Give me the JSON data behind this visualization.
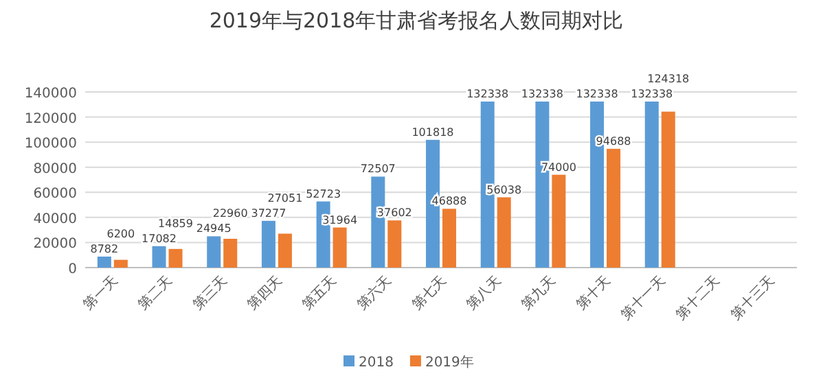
{
  "chart_data": {
    "type": "bar",
    "title": "2019年与2018年甘肃省考报名人数同期对比",
    "categories": [
      "第一天",
      "第二天",
      "第三天",
      "第四天",
      "第五天",
      "第六天",
      "第七天",
      "第八天",
      "第九天",
      "第十天",
      "第十一天",
      "第十二天",
      "第十三天"
    ],
    "series": [
      {
        "name": "2018",
        "color": "#5b9bd5",
        "values": [
          8782,
          17082,
          24945,
          37277,
          52723,
          72507,
          101818,
          132338,
          132338,
          132338,
          132338,
          null,
          null
        ]
      },
      {
        "name": "2019年",
        "color": "#ed7d31",
        "values": [
          6200,
          14859,
          22960,
          27051,
          31964,
          37602,
          46888,
          56038,
          74000,
          94688,
          124318,
          null,
          null
        ]
      }
    ],
    "ylim": [
      0,
      140000
    ],
    "yticks": [
      0,
      20000,
      40000,
      60000,
      80000,
      100000,
      120000,
      140000
    ],
    "grid": "y",
    "legend": "bottom",
    "data_labels": true
  }
}
